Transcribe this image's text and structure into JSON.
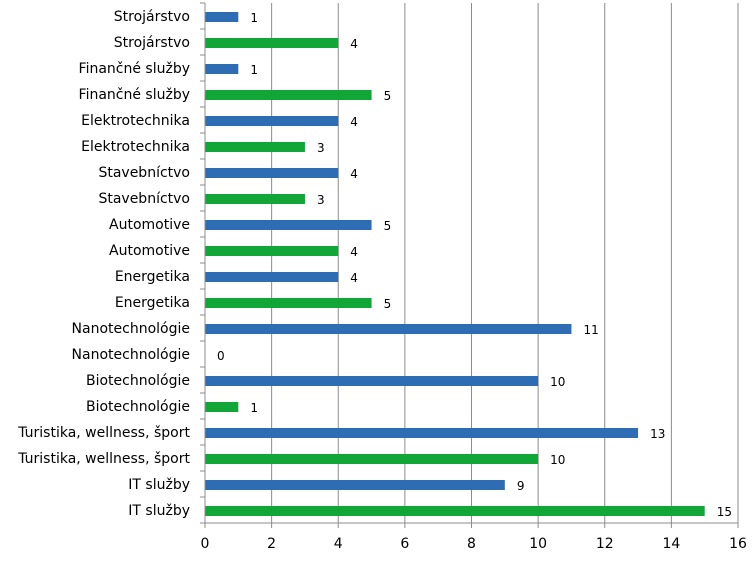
{
  "chart_data": {
    "type": "bar",
    "orientation": "horizontal",
    "categories": [
      "Strojárstvo",
      "Strojárstvo",
      "Finančné služby",
      "Finančné služby",
      "Elektrotechnika",
      "Elektrotechnika",
      "Stavebníctvo",
      "Stavebníctvo",
      "Automotive",
      "Automotive",
      "Energetika",
      "Energetika",
      "Nanotechnológie",
      "Nanotechnológie",
      "Biotechnológie",
      "Biotechnológie",
      "Turistika, wellness, šport",
      "Turistika, wellness, šport",
      "IT služby",
      "IT služby"
    ],
    "values": [
      1,
      4,
      1,
      5,
      4,
      3,
      4,
      3,
      5,
      4,
      4,
      5,
      11,
      0,
      10,
      1,
      13,
      10,
      9,
      15
    ],
    "bar_colors": [
      "#2e6db3",
      "#12a537",
      "#2e6db3",
      "#12a537",
      "#2e6db3",
      "#12a537",
      "#2e6db3",
      "#12a537",
      "#2e6db3",
      "#12a537",
      "#2e6db3",
      "#12a537",
      "#2e6db3",
      "#12a537",
      "#2e6db3",
      "#12a537",
      "#2e6db3",
      "#12a537",
      "#2e6db3",
      "#12a537"
    ],
    "x_ticks": [
      0,
      2,
      4,
      6,
      8,
      10,
      12,
      14,
      16
    ],
    "xlim": [
      0,
      16
    ],
    "grid": "vertical",
    "legend": "none",
    "title": "",
    "xlabel": "",
    "ylabel": ""
  }
}
